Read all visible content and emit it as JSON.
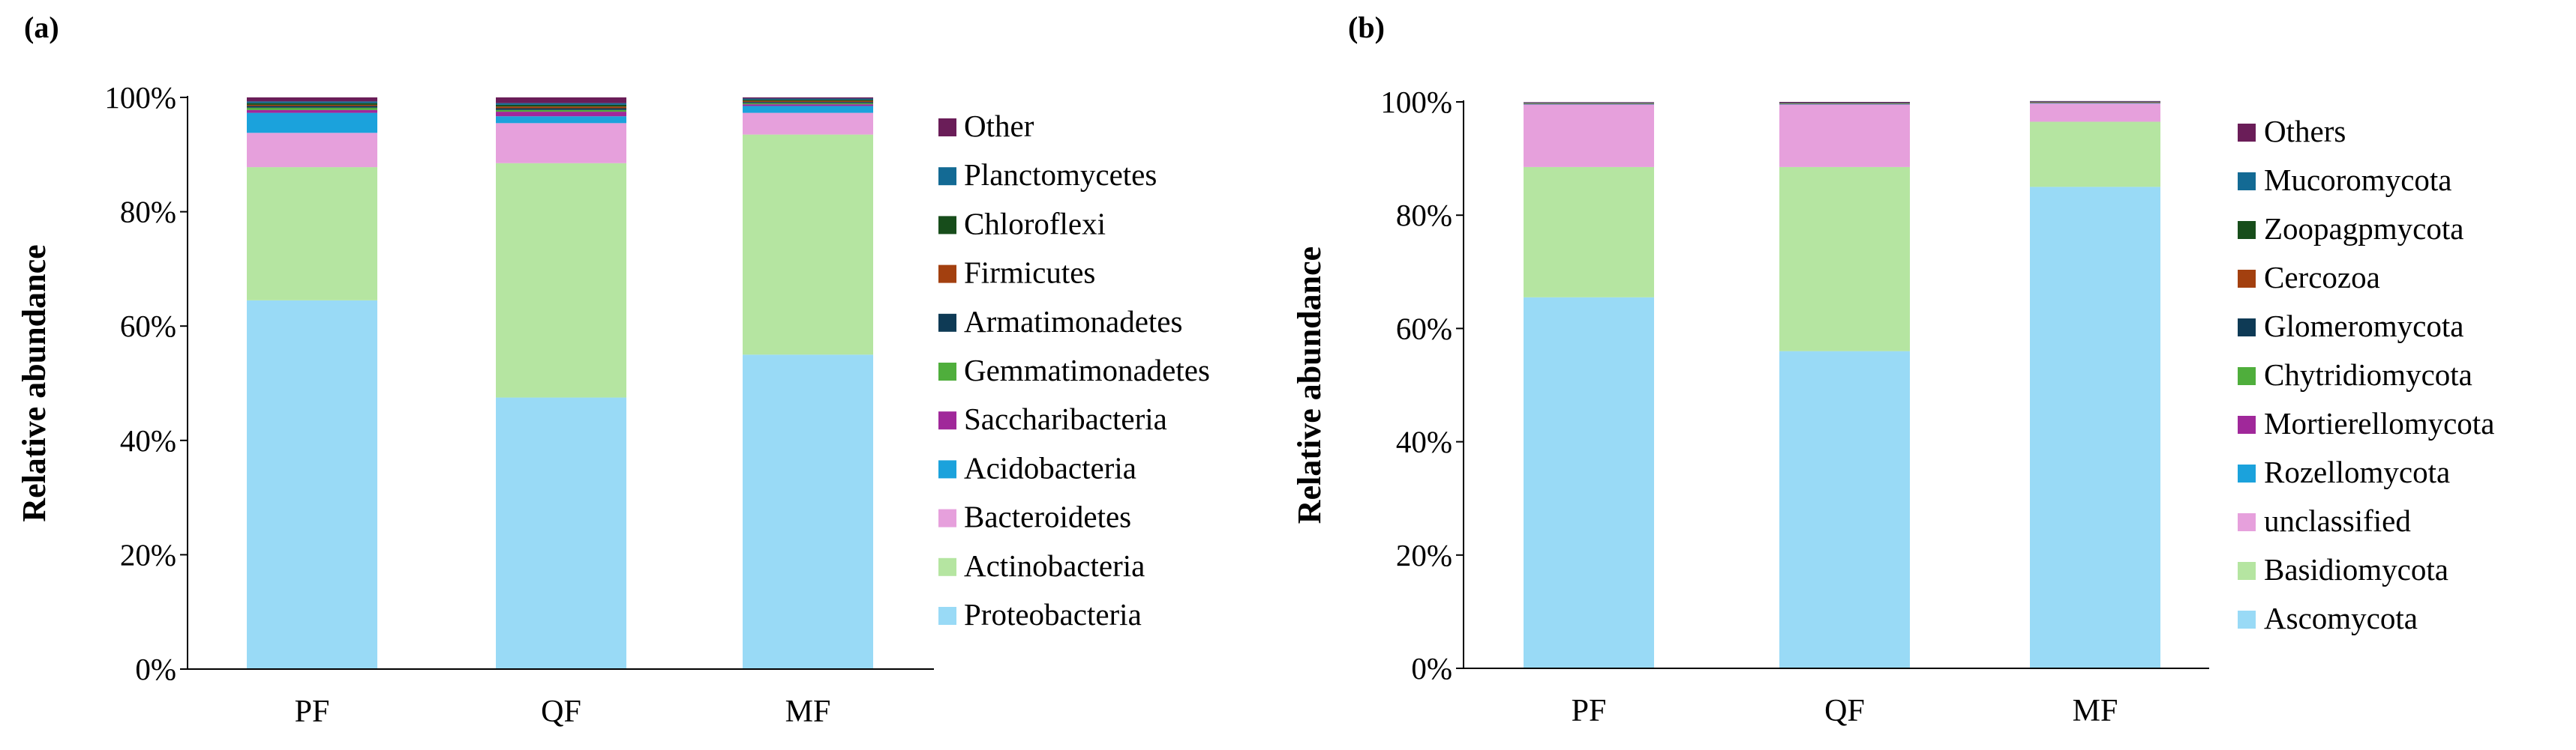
{
  "chart_data": [
    {
      "panel_label": "(a)",
      "type": "bar",
      "stacked": true,
      "categories": [
        "PF",
        "QF",
        "MF"
      ],
      "ylabel": "Relative abundance",
      "xlabel": "",
      "ylim": [
        0,
        100
      ],
      "yticks": [
        "0%",
        "20%",
        "40%",
        "60%",
        "80%",
        "100%"
      ],
      "legend_position": "right",
      "series": [
        {
          "name": "Proteobacteria",
          "color": "#99DAF6",
          "values": [
            64.5,
            47.5,
            55.0
          ]
        },
        {
          "name": "Actinobacteria",
          "color": "#B5E5A1",
          "values": [
            23.3,
            41.0,
            38.5
          ]
        },
        {
          "name": "Bacteroidetes",
          "color": "#E6A0DC",
          "values": [
            6.0,
            7.0,
            3.8
          ]
        },
        {
          "name": "Acidobacteria",
          "color": "#1BA2DC",
          "values": [
            3.5,
            1.2,
            1.2
          ]
        },
        {
          "name": "Saccharibacteria",
          "color": "#A0289A",
          "values": [
            0.5,
            0.8,
            0.3
          ]
        },
        {
          "name": "Gemmatimonadetes",
          "color": "#4FAE3C",
          "values": [
            0.4,
            0.3,
            0.2
          ]
        },
        {
          "name": "Armatimonadetes",
          "color": "#0E3A55",
          "values": [
            0.3,
            0.3,
            0.2
          ]
        },
        {
          "name": "Firmicutes",
          "color": "#A3400F",
          "values": [
            0.2,
            0.3,
            0.2
          ]
        },
        {
          "name": "Chloroflexi",
          "color": "#174D1B",
          "values": [
            0.3,
            0.3,
            0.2
          ]
        },
        {
          "name": "Planctomycetes",
          "color": "#136A94",
          "values": [
            0.3,
            0.3,
            0.2
          ]
        },
        {
          "name": "Other",
          "color": "#6A1D58",
          "values": [
            0.7,
            1.0,
            0.2
          ]
        }
      ]
    },
    {
      "panel_label": "(b)",
      "type": "bar",
      "stacked": true,
      "categories": [
        "PF",
        "QF",
        "MF"
      ],
      "ylabel": "Relative abundance",
      "xlabel": "",
      "ylim": [
        0,
        100
      ],
      "yticks": [
        "0%",
        "20%",
        "40%",
        "60%",
        "80%",
        "100%"
      ],
      "legend_position": "right",
      "series": [
        {
          "name": "Ascomycota",
          "color": "#99DAF6",
          "values": [
            65.5,
            56.0,
            85.0
          ]
        },
        {
          "name": "Basidiomycota",
          "color": "#B5E5A1",
          "values": [
            23.0,
            32.5,
            11.5
          ]
        },
        {
          "name": "unclassified",
          "color": "#E6A0DC",
          "values": [
            11.0,
            11.0,
            3.2
          ]
        },
        {
          "name": "Rozellomycota",
          "color": "#1BA2DC",
          "values": [
            0.05,
            0.05,
            0.05
          ]
        },
        {
          "name": "Mortierellomycota",
          "color": "#A0289A",
          "values": [
            0.05,
            0.05,
            0.05
          ]
        },
        {
          "name": "Chytridiomycota",
          "color": "#4FAE3C",
          "values": [
            0.05,
            0.05,
            0.05
          ]
        },
        {
          "name": "Glomeromycota",
          "color": "#0E3A55",
          "values": [
            0.05,
            0.05,
            0.05
          ]
        },
        {
          "name": "Cercozoa",
          "color": "#A3400F",
          "values": [
            0.05,
            0.05,
            0.05
          ]
        },
        {
          "name": "Zoopagpmycota",
          "color": "#174D1B",
          "values": [
            0.05,
            0.05,
            0.05
          ]
        },
        {
          "name": "Mucoromycota",
          "color": "#136A94",
          "values": [
            0.05,
            0.05,
            0.05
          ]
        },
        {
          "name": "Others",
          "color": "#6A1D58",
          "values": [
            0.1,
            0.15,
            0.1
          ]
        }
      ]
    }
  ]
}
